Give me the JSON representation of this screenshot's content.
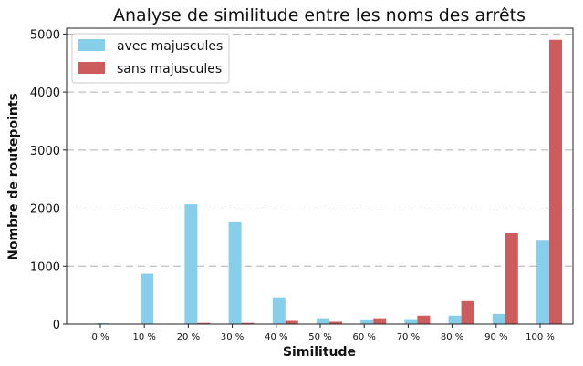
{
  "chart_data": {
    "type": "bar",
    "title": "Analyse de similitude entre les noms des arrêts",
    "xlabel": "Similitude",
    "ylabel": "Nombre de routepoints",
    "categories": [
      "0 %",
      "10 %",
      "20 %",
      "30 %",
      "40 %",
      "50 %",
      "60 %",
      "70 %",
      "80 %",
      "90 %",
      "100 %"
    ],
    "series": [
      {
        "name": "avec majuscules",
        "color": "#87ceeb",
        "values": [
          15,
          870,
          2070,
          1760,
          460,
          100,
          80,
          85,
          145,
          175,
          1440
        ]
      },
      {
        "name": "sans majuscules",
        "color": "#cd5c5c",
        "values": [
          0,
          0,
          20,
          20,
          55,
          40,
          100,
          145,
          395,
          1570,
          4900
        ]
      }
    ],
    "ylim": [
      0,
      5100
    ],
    "yticks": [
      0,
      1000,
      2000,
      3000,
      4000,
      5000
    ],
    "grid": "y-dashed",
    "legend_position": "top-left"
  }
}
